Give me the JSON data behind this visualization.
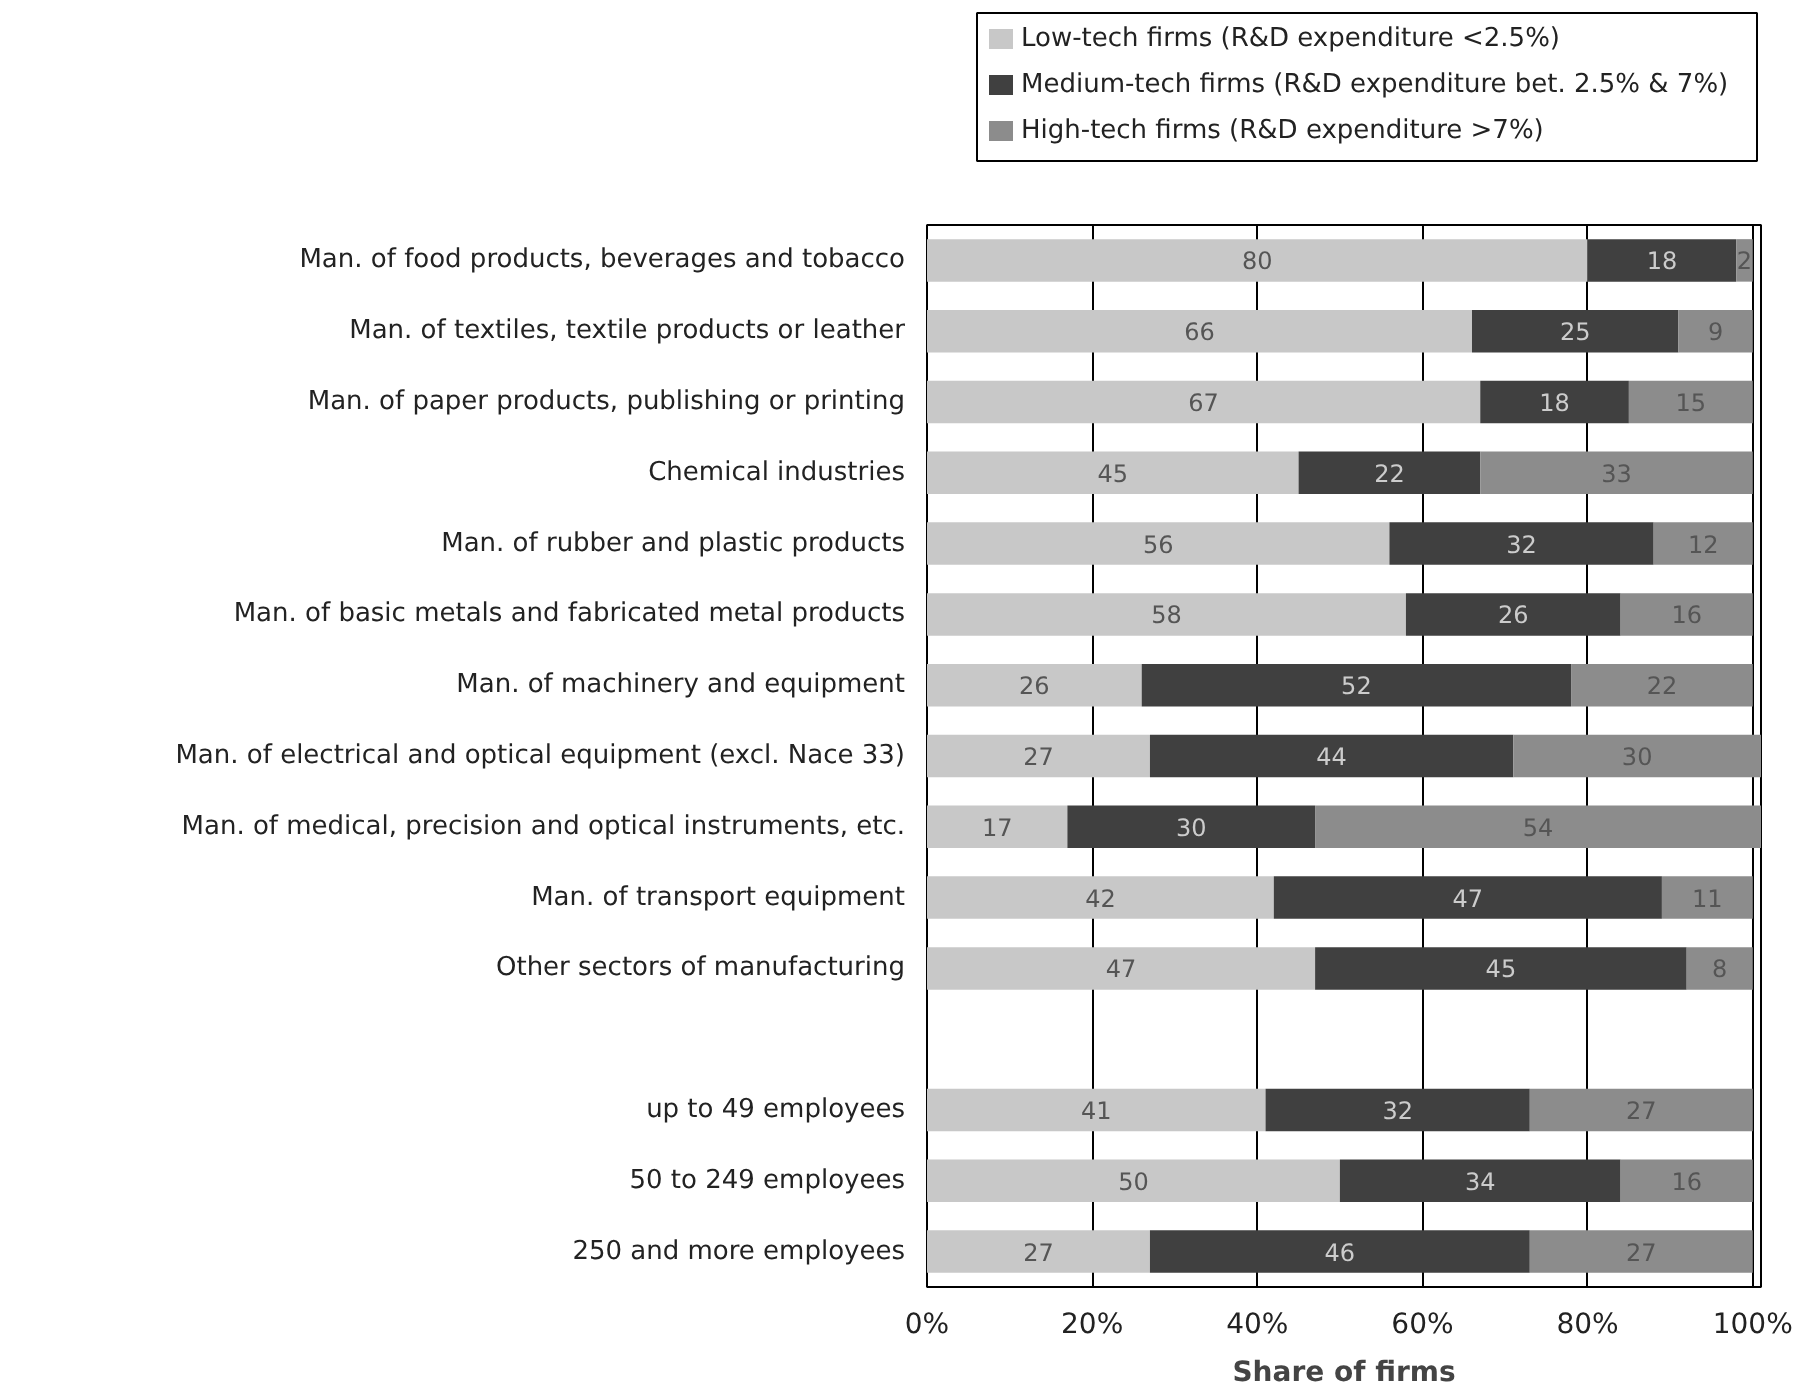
{
  "chart_data": {
    "type": "bar",
    "orientation": "horizontal",
    "stacked": true,
    "data_labels": true,
    "categories": [
      "Man. of food products, beverages and tobacco",
      "Man. of textiles, textile products or leather",
      "Man. of paper products, publishing or printing",
      "Chemical industries",
      "Man. of rubber and plastic products",
      "Man. of basic metals and fabricated metal products",
      "Man. of machinery and equipment",
      "Man. of electrical and optical equipment (excl. Nace 33)",
      "Man. of medical, precision and optical instruments, etc.",
      "Man. of transport equipment",
      "Other sectors of manufacturing",
      null,
      "up to 49 employees",
      "50 to 249 employees",
      "250 and more employees"
    ],
    "series": [
      {
        "name": "Low-tech firms (R&D expenditure <2.5%)",
        "color": "#c8c8c8",
        "values": [
          80,
          66,
          67,
          45,
          56,
          58,
          26,
          27,
          17,
          42,
          47,
          null,
          41,
          50,
          27
        ]
      },
      {
        "name": "Medium-tech firms (R&D expenditure bet. 2.5% & 7%)",
        "color": "#404040",
        "values": [
          18,
          25,
          18,
          22,
          32,
          26,
          52,
          44,
          30,
          47,
          45,
          null,
          32,
          34,
          46
        ]
      },
      {
        "name": "High-tech firms (R&D expenditure >7%)",
        "color": "#8c8c8c",
        "values": [
          2,
          9,
          15,
          33,
          12,
          16,
          22,
          30,
          54,
          11,
          8,
          null,
          27,
          16,
          27
        ]
      }
    ],
    "xlim": [
      0,
      101
    ],
    "xticks": [
      {
        "value": 0,
        "label": "0%"
      },
      {
        "value": 20,
        "label": "20%"
      },
      {
        "value": 40,
        "label": "40%"
      },
      {
        "value": 60,
        "label": "60%"
      },
      {
        "value": 80,
        "label": "80%"
      },
      {
        "value": 100,
        "label": "100%"
      }
    ],
    "xlabel": "Share of firms",
    "grid": "x",
    "legend": "top"
  }
}
